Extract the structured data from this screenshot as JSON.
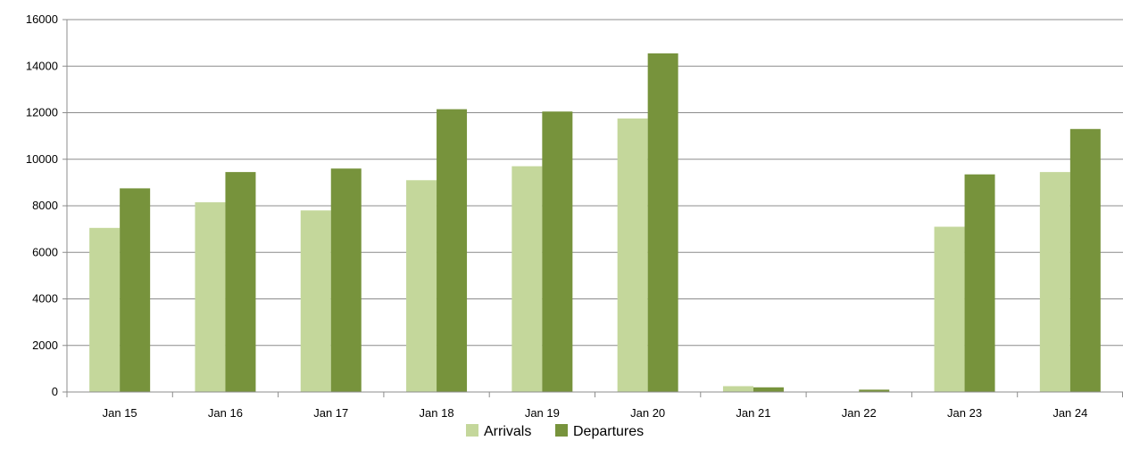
{
  "chart_data": {
    "type": "bar",
    "title": "",
    "xlabel": "",
    "ylabel": "",
    "categories": [
      "Jan 15",
      "Jan 16",
      "Jan 17",
      "Jan 18",
      "Jan 19",
      "Jan 20",
      "Jan 21",
      "Jan 22",
      "Jan 23",
      "Jan 24"
    ],
    "series": [
      {
        "name": "Arrivals",
        "color": "#c4d79b",
        "values": [
          7050,
          8150,
          7800,
          9100,
          9700,
          11750,
          250,
          0,
          7100,
          9450
        ]
      },
      {
        "name": "Departures",
        "color": "#77933c",
        "values": [
          8750,
          9450,
          9600,
          12150,
          12050,
          14550,
          200,
          100,
          9350,
          11300
        ]
      }
    ],
    "ylim": [
      0,
      16000
    ],
    "yticks": [
      "0",
      "2000",
      "4000",
      "6000",
      "8000",
      "10000",
      "12000",
      "14000",
      "16000"
    ],
    "grid": true,
    "legend_position": "bottom"
  }
}
